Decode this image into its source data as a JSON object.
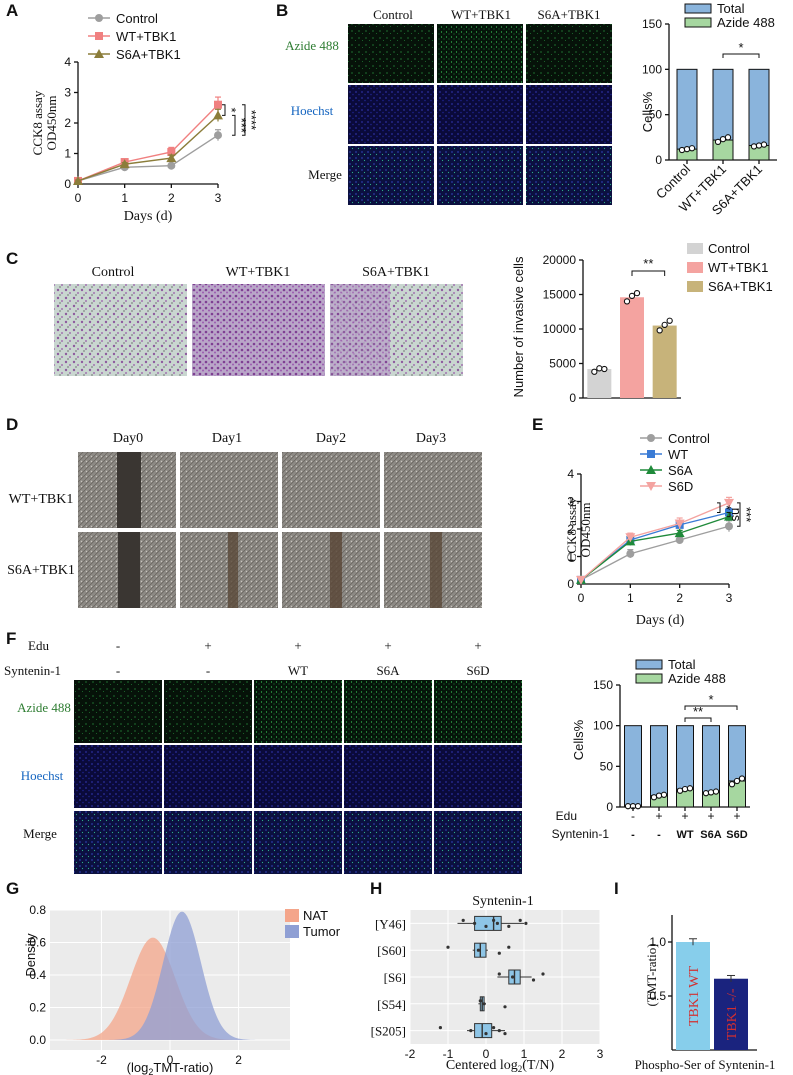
{
  "panels": {
    "A": "A",
    "B": "B",
    "C": "C",
    "D": "D",
    "E": "E",
    "F": "F",
    "G": "G",
    "H": "H",
    "I": "I"
  },
  "chart_data": [
    {
      "id": "A",
      "type": "line",
      "ylabel_1": "CCK8 assay",
      "ylabel_2": "OD450nm",
      "xlabel": "Days (d)",
      "x": [
        0,
        1,
        2,
        3
      ],
      "xticks": [
        "0",
        "1",
        "2",
        "3"
      ],
      "yticks": [
        "0",
        "1",
        "2",
        "3",
        "4"
      ],
      "ylim": [
        0,
        4
      ],
      "series": [
        {
          "name": "Control",
          "color": "#9e9e9e",
          "marker": "circle",
          "values": [
            0.1,
            0.55,
            0.6,
            1.6
          ],
          "err": [
            0.03,
            0.05,
            0.05,
            0.18
          ]
        },
        {
          "name": "WT+TBK1",
          "color": "#f08080",
          "marker": "square",
          "values": [
            0.1,
            0.72,
            1.05,
            2.6
          ],
          "err": [
            0.03,
            0.06,
            0.15,
            0.25
          ]
        },
        {
          "name": "S6A+TBK1",
          "color": "#8b7d3a",
          "marker": "triangle",
          "values": [
            0.1,
            0.65,
            0.85,
            2.25
          ],
          "err": [
            0.03,
            0.05,
            0.1,
            0.2
          ]
        }
      ],
      "sig": [
        "*",
        "***",
        "****"
      ]
    },
    {
      "id": "B",
      "type": "bar",
      "ylabel": "Cells%",
      "categories": [
        "Control",
        "WT+TBK1",
        "S6A+TBK1"
      ],
      "yticks": [
        "0",
        "50",
        "100",
        "150"
      ],
      "ylim": [
        0,
        150
      ],
      "legend": [
        "Total",
        "Azide 488"
      ],
      "total": [
        100,
        100,
        100
      ],
      "values": [
        12,
        22,
        16
      ],
      "points": [
        [
          11,
          12,
          13
        ],
        [
          20,
          23,
          25
        ],
        [
          15,
          16,
          17
        ]
      ],
      "sig": "*"
    },
    {
      "id": "C",
      "type": "bar",
      "ylabel": "Number of invasive cells",
      "categories": [
        "Control",
        "WT+TBK1",
        "S6A+TBK1"
      ],
      "colors": [
        "#d3d3d3",
        "#f4a3a0",
        "#c7b37a"
      ],
      "yticks": [
        "0",
        "5000",
        "10000",
        "15000",
        "20000"
      ],
      "ylim": [
        0,
        20000
      ],
      "values": [
        4200,
        14600,
        10500
      ],
      "points": [
        [
          3800,
          4300,
          4200
        ],
        [
          14000,
          14800,
          15200
        ],
        [
          9800,
          10600,
          11200
        ]
      ],
      "sig": "**"
    },
    {
      "id": "E",
      "type": "line",
      "ylabel_1": "CCK8 assay",
      "ylabel_2": "OD450nm",
      "xlabel": "Days (d)",
      "x": [
        0,
        1,
        2,
        3
      ],
      "xticks": [
        "0",
        "1",
        "2",
        "3"
      ],
      "yticks": [
        "0",
        "1",
        "2",
        "3",
        "4"
      ],
      "ylim": [
        0,
        4
      ],
      "series": [
        {
          "name": "Control",
          "color": "#9e9e9e",
          "marker": "circle",
          "values": [
            0.15,
            1.1,
            1.6,
            2.1
          ],
          "err": [
            0.03,
            0.15,
            0.1,
            0.2
          ]
        },
        {
          "name": "WT",
          "color": "#3a7bd5",
          "marker": "square",
          "values": [
            0.15,
            1.6,
            2.15,
            2.6
          ],
          "err": [
            0.03,
            0.15,
            0.15,
            0.15
          ]
        },
        {
          "name": "S6A",
          "color": "#1f8a3a",
          "marker": "triangle",
          "values": [
            0.15,
            1.55,
            1.85,
            2.45
          ],
          "err": [
            0.03,
            0.15,
            0.1,
            0.15
          ]
        },
        {
          "name": "S6D",
          "color": "#f4a3a0",
          "marker": "triangle-down",
          "values": [
            0.15,
            1.7,
            2.2,
            2.95
          ],
          "err": [
            0.03,
            0.15,
            0.2,
            0.2
          ]
        }
      ],
      "sig": [
        "*",
        "ns",
        "***"
      ]
    },
    {
      "id": "F",
      "type": "bar",
      "ylabel": "Cells%",
      "yticks": [
        "0",
        "50",
        "100",
        "150"
      ],
      "ylim": [
        0,
        150
      ],
      "legend": [
        "Total",
        "Azide 488"
      ],
      "row1_label": "Edu",
      "row2_label": "Syntenin-1",
      "edu": [
        "-",
        "+",
        "+",
        "+",
        "+"
      ],
      "syn": [
        "-",
        "-",
        "WT",
        "S6A",
        "S6D"
      ],
      "total": [
        100,
        100,
        100,
        100,
        100
      ],
      "values": [
        1,
        14,
        22,
        18,
        32
      ],
      "points": [
        [
          1,
          1,
          1
        ],
        [
          12,
          14,
          15
        ],
        [
          20,
          22,
          23
        ],
        [
          17,
          18,
          19
        ],
        [
          28,
          32,
          35
        ]
      ],
      "sig": [
        "**",
        "*"
      ]
    },
    {
      "id": "G",
      "type": "area",
      "ylabel": "Density",
      "xlabel": "(log₂TMT-ratio)",
      "xticks": [
        "-2",
        "0",
        "2"
      ],
      "yticks": [
        "0.0",
        "0.2",
        "0.4",
        "0.6",
        "0.8"
      ],
      "ylim": [
        0,
        0.8
      ],
      "xlim": [
        -3.5,
        3.5
      ],
      "series": [
        {
          "name": "NAT",
          "color": "#f4a58a",
          "mean": -0.5,
          "sd": 0.65,
          "peak": 0.63
        },
        {
          "name": "Tumor",
          "color": "#8f9fd4",
          "mean": 0.35,
          "sd": 0.55,
          "peak": 0.79
        }
      ]
    },
    {
      "id": "H",
      "type": "box",
      "title": "Syntenin-1",
      "xlabel": "Centered log₂(T/N)",
      "categories": [
        "[Y46]",
        "[S60]",
        "[S6]",
        "[S54]",
        "[S205]"
      ],
      "xticks": [
        "-2",
        "-1",
        "0",
        "1",
        "2",
        "3"
      ],
      "xlim": [
        -2,
        3
      ],
      "boxes": [
        {
          "q1": -0.3,
          "med": 0.2,
          "q3": 0.4,
          "lo": -0.75,
          "hi": 1.0,
          "pts": [
            -0.6,
            -0.3,
            0.0,
            0.2,
            0.3,
            0.6,
            0.9,
            1.05
          ]
        },
        {
          "q1": -0.3,
          "med": -0.15,
          "q3": 0.0,
          "lo": -0.35,
          "hi": 0.05,
          "pts": [
            -1.0,
            -0.2,
            0.35,
            0.6
          ]
        },
        {
          "q1": 0.6,
          "med": 0.75,
          "q3": 0.9,
          "lo": 0.3,
          "hi": 1.2,
          "pts": [
            0.35,
            0.7,
            1.25,
            1.5
          ]
        },
        {
          "q1": -0.15,
          "med": -0.1,
          "q3": -0.05,
          "lo": -0.2,
          "hi": 0.0,
          "pts": [
            -0.15,
            -0.05,
            0.5
          ]
        },
        {
          "q1": -0.3,
          "med": -0.1,
          "q3": 0.15,
          "lo": -0.5,
          "hi": 0.5,
          "pts": [
            -1.2,
            -0.4,
            0.0,
            0.2,
            0.35,
            0.5
          ]
        }
      ]
    },
    {
      "id": "I",
      "type": "bar",
      "ylabel": "(TMT-ratio)",
      "xlabel": "Phospho-Ser of Syntenin-1",
      "yticks": [
        "0.5",
        "1.0"
      ],
      "ylim": [
        0,
        1.25
      ],
      "categories": [
        "TBK1 WT",
        "TBK1 -/-"
      ],
      "colors": [
        "#87ceeb",
        "#1a237e"
      ],
      "values": [
        1.0,
        0.66
      ],
      "err": [
        0.03,
        0.03
      ]
    }
  ],
  "micro": {
    "B": {
      "cols": [
        "Control",
        "WT+TBK1",
        "S6A+TBK1"
      ],
      "rows": [
        "Azide 488",
        "Hoechst",
        "Merge"
      ]
    },
    "C": {
      "cols": [
        "Control",
        "WT+TBK1",
        "S6A+TBK1"
      ]
    },
    "D": {
      "cols": [
        "Day0",
        "Day1",
        "Day2",
        "Day3"
      ],
      "rows": [
        "WT+TBK1",
        "S6A+TBK1"
      ]
    },
    "F": {
      "rows": [
        "Azide 488",
        "Hoechst",
        "Merge"
      ],
      "edu_label": "Edu",
      "syn_label": "Syntenin-1",
      "edu": [
        "-",
        "+",
        "+",
        "+",
        "+"
      ],
      "syn": [
        "-",
        "-",
        "WT",
        "S6A",
        "S6D"
      ]
    }
  },
  "colors": {
    "azide": "#2e7d32",
    "hoechst": "#1565c0",
    "total": "#8ab4dc",
    "azidebar": "#a6d7a0"
  }
}
